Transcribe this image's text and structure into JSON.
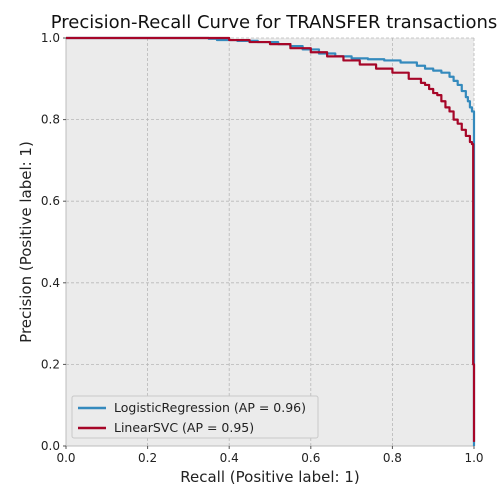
{
  "chart_data": {
    "type": "line",
    "title": "Precision-Recall Curve for TRANSFER transactions",
    "xlabel": "Recall (Positive label: 1)",
    "ylabel": "Precision (Positive label: 1)",
    "xlim": [
      0.0,
      1.0
    ],
    "ylim": [
      0.0,
      1.0
    ],
    "xticks": [
      "0.0",
      "0.2",
      "0.4",
      "0.6",
      "0.8",
      "1.0"
    ],
    "yticks": [
      "0.0",
      "0.2",
      "0.4",
      "0.6",
      "0.8",
      "1.0"
    ],
    "grid": true,
    "legend_position": "lower-left",
    "series": [
      {
        "name": "LogisticRegression (AP = 0.96)",
        "color": "#348ABD",
        "x": [
          0.0,
          0.34,
          0.35,
          0.37,
          0.42,
          0.47,
          0.52,
          0.55,
          0.58,
          0.62,
          0.66,
          0.7,
          0.74,
          0.78,
          0.82,
          0.86,
          0.88,
          0.9,
          0.92,
          0.94,
          0.95,
          0.96,
          0.97,
          0.98,
          0.985,
          0.99,
          0.995,
          1.0
        ],
        "y": [
          1.0,
          1.0,
          0.998,
          0.995,
          0.993,
          0.99,
          0.985,
          0.98,
          0.972,
          0.962,
          0.955,
          0.95,
          0.948,
          0.945,
          0.94,
          0.932,
          0.925,
          0.92,
          0.915,
          0.905,
          0.895,
          0.885,
          0.87,
          0.855,
          0.845,
          0.83,
          0.82,
          0.0
        ]
      },
      {
        "name": "LinearSVC (AP = 0.95)",
        "color": "#A60628",
        "x": [
          0.0,
          0.36,
          0.4,
          0.45,
          0.5,
          0.55,
          0.6,
          0.64,
          0.68,
          0.72,
          0.76,
          0.8,
          0.84,
          0.87,
          0.88,
          0.89,
          0.9,
          0.91,
          0.92,
          0.93,
          0.94,
          0.95,
          0.96,
          0.97,
          0.98,
          0.99,
          0.995,
          0.998,
          1.0
        ],
        "y": [
          1.0,
          1.0,
          0.995,
          0.99,
          0.985,
          0.975,
          0.965,
          0.955,
          0.945,
          0.935,
          0.925,
          0.915,
          0.9,
          0.89,
          0.885,
          0.875,
          0.865,
          0.86,
          0.845,
          0.83,
          0.82,
          0.8,
          0.79,
          0.775,
          0.76,
          0.745,
          0.74,
          0.2,
          0.01
        ]
      }
    ]
  }
}
